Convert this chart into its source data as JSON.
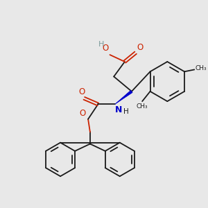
{
  "bg_color": "#e8e8e8",
  "bond_color": "#1a1a1a",
  "red_color": "#cc2200",
  "blue_color": "#0000cc",
  "gray_color": "#7a9a9a",
  "lw": 1.3,
  "xlim": [
    0,
    10
  ],
  "ylim": [
    0,
    10
  ]
}
